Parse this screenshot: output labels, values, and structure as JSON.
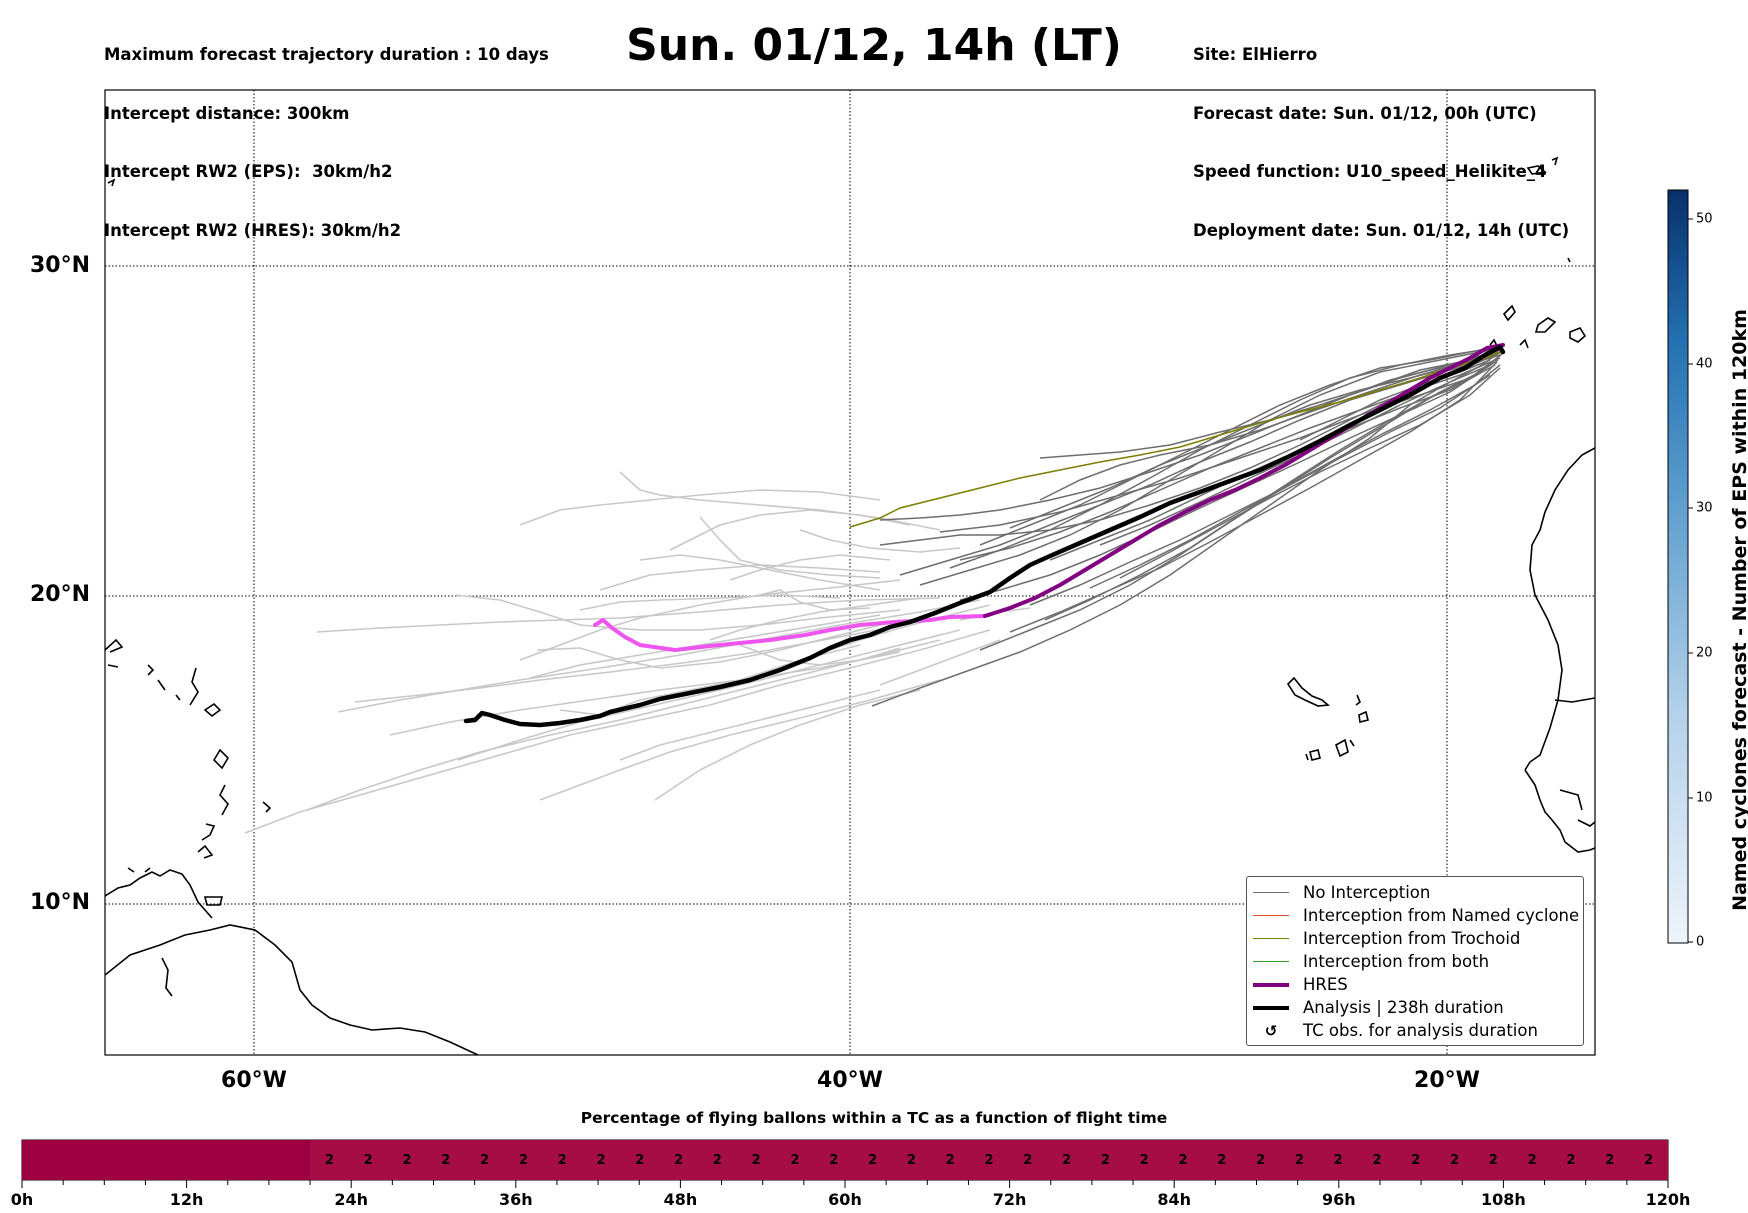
{
  "header": {
    "left_lines": [
      "Maximum forecast trajectory duration : 10 days",
      "Intercept distance: 300km",
      "Intercept RW2 (EPS):  30km/h2",
      "Intercept RW2 (HRES): 30km/h2"
    ],
    "title": "Sun. 01/12, 14h (LT)",
    "right_lines": [
      "Site: ElHierro",
      "Forecast date: Sun. 01/12, 00h (UTC)",
      "Speed function: U10_speed_Helikite_4",
      "Deployment date: Sun. 01/12, 14h (UTC)"
    ]
  },
  "map": {
    "lat_labels": [
      "30°N",
      "20°N",
      "10°N"
    ],
    "lon_labels": [
      "60°W",
      "40°W",
      "20°W"
    ],
    "colors": {
      "no_interception": "#6e6e6e",
      "ensemble_faint": "#c8c8c8",
      "named_cyclone": "#e8502a",
      "trochoid": "#7f7d00",
      "both": "#2ca02c",
      "hres": "#800080",
      "hres_early": "#ee55ee",
      "analysis": "#000000"
    }
  },
  "legend": {
    "items": [
      {
        "label": "No Interception",
        "style": "thin",
        "color": "#6e6e6e"
      },
      {
        "label": "Interception from Named cyclone",
        "style": "thin",
        "color": "#e8502a"
      },
      {
        "label": "Interception from Trochoid",
        "style": "thin",
        "color": "#7f7d00"
      },
      {
        "label": "Interception from both",
        "style": "thin",
        "color": "#2ca02c"
      },
      {
        "label": "HRES",
        "style": "thick",
        "color": "#800080"
      },
      {
        "label": "Analysis | 238h duration",
        "style": "thick",
        "color": "#000000"
      },
      {
        "label": "TC obs. for analysis duration",
        "style": "symbol",
        "symbol": "↺"
      }
    ]
  },
  "colorbar": {
    "label": "Named cyclones forecast - Number of EPS within 120km",
    "ticks": [
      "0",
      "10",
      "20",
      "30",
      "40",
      "50"
    ],
    "min": 0,
    "max": 52,
    "color_low": "#e8f1fb",
    "color_high": "#08306b"
  },
  "bottom_bar": {
    "title": "Percentage of flying ballons within a TC as a function of flight time",
    "first_segment_color": "#9e0142",
    "segment_color": "#a70d45",
    "values": [
      "2",
      "2",
      "2",
      "2",
      "2",
      "2",
      "2",
      "2",
      "2",
      "2",
      "2",
      "2",
      "2",
      "2",
      "2",
      "2",
      "2",
      "2",
      "2",
      "2",
      "2",
      "2",
      "2",
      "2",
      "2",
      "2",
      "2",
      "2",
      "2",
      "2",
      "2",
      "2",
      "2",
      "2",
      "2"
    ],
    "tick_labels": [
      "0h",
      "12h",
      "24h",
      "36h",
      "48h",
      "60h",
      "72h",
      "84h",
      "96h",
      "108h",
      "120h"
    ]
  }
}
